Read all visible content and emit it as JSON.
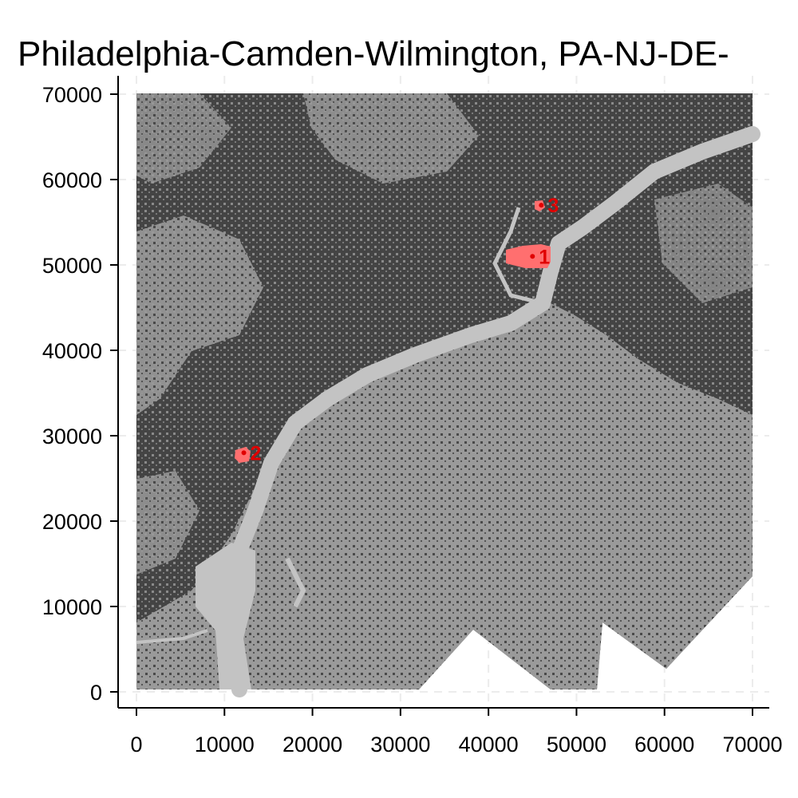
{
  "title": "Philadelphia-Camden-Wilmington, PA-NJ-DE-",
  "axes": {
    "x_ticks": [
      0,
      10000,
      20000,
      30000,
      40000,
      50000,
      60000,
      70000
    ],
    "y_ticks": [
      0,
      10000,
      20000,
      30000,
      40000,
      50000,
      60000,
      70000
    ],
    "xlim": [
      -2000,
      72000
    ],
    "ylim": [
      -2000,
      72000
    ],
    "grid": true,
    "grid_style": "dashed"
  },
  "colors": {
    "developed": "#444444",
    "undeveloped": "#999999",
    "water": "#c3c3c3",
    "hotspot": "#ff6f6f",
    "hotspot_label": "#e00000",
    "grid": "#ececec"
  },
  "markers": [
    {
      "label": "1",
      "x": 45000,
      "y": 51000
    },
    {
      "label": "2",
      "x": 12200,
      "y": 28000
    },
    {
      "label": "3",
      "x": 46000,
      "y": 57000
    }
  ]
}
